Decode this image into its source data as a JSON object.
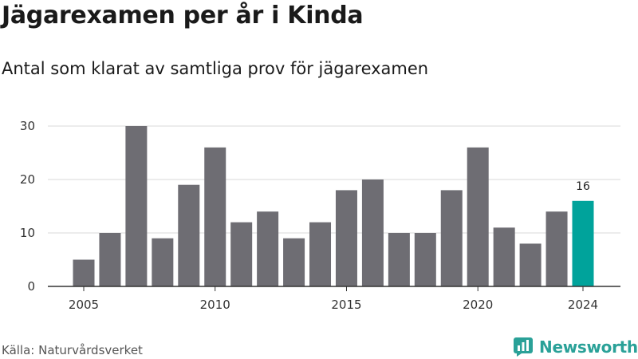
{
  "header": {
    "title": "Jägarexamen per år i Kinda",
    "subtitle": "Antal som klarat av samtliga prov för jägarexamen"
  },
  "footer": {
    "source": "Källa: Naturvårdsverket",
    "brand": "Newsworthy",
    "brand_icon": "newsworthy-logo-icon"
  },
  "colors": {
    "bar": "#6e6d73",
    "highlight": "#00a39b",
    "grid": "#d9d9d9",
    "brand": "#2aa198"
  },
  "chart_data": {
    "type": "bar",
    "x": [
      2005,
      2006,
      2007,
      2008,
      2009,
      2010,
      2011,
      2012,
      2013,
      2014,
      2015,
      2016,
      2017,
      2018,
      2019,
      2020,
      2021,
      2022,
      2023,
      2024
    ],
    "values": [
      5,
      10,
      30,
      9,
      19,
      26,
      12,
      14,
      9,
      12,
      18,
      20,
      10,
      10,
      18,
      26,
      11,
      8,
      14,
      16
    ],
    "highlight_index": 19,
    "data_labels": [
      {
        "index": 19,
        "text": "16"
      }
    ],
    "x_tick_labels": [
      "2005",
      "2010",
      "2015",
      "2020",
      "2024"
    ],
    "y_ticks": [
      0,
      10,
      20,
      30
    ],
    "ylim": [
      0,
      30
    ],
    "grid": true,
    "legend": "none"
  }
}
